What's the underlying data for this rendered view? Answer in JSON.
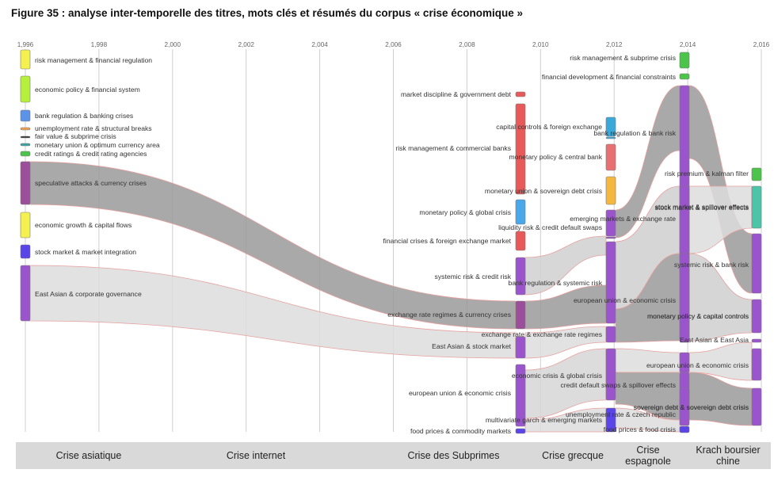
{
  "title": "Figure 35 : analyse inter-temporelle des titres, mots clés et résumés du corpus « crise économique »",
  "colors": {
    "grey_dark": "#9a9a9a",
    "grey_light": "#dddddd",
    "flow_edge": "#e8a0a0"
  },
  "years": [
    {
      "label": "1,996",
      "value": 1996
    },
    {
      "label": "1,998",
      "value": 1998
    },
    {
      "label": "2,000",
      "value": 2000
    },
    {
      "label": "2,002",
      "value": 2002
    },
    {
      "label": "2,004",
      "value": 2004
    },
    {
      "label": "2,006",
      "value": 2006
    },
    {
      "label": "2,008",
      "value": 2008
    },
    {
      "label": "2,010",
      "value": 2010
    },
    {
      "label": "2,012",
      "value": 2012
    },
    {
      "label": "2,014",
      "value": 2014
    },
    {
      "label": "2,016",
      "value": 2016
    }
  ],
  "clusters": [
    {
      "id": "c96_1",
      "year": 1996,
      "label": "risk management & financial regulation",
      "color": "#f4f050"
    },
    {
      "id": "c96_2",
      "year": 1996,
      "label": "economic policy & financial system",
      "color": "#b6f03c"
    },
    {
      "id": "c96_3",
      "year": 1996,
      "label": "bank regulation & banking crises",
      "color": "#5b93e8"
    },
    {
      "id": "c96_4",
      "year": 1996,
      "label": "unemployment rate & structural breaks",
      "color": "#f0a050"
    },
    {
      "id": "c96_5",
      "year": 1996,
      "label": "fair value & subprime crisis",
      "color": "#333333"
    },
    {
      "id": "c96_6",
      "year": 1996,
      "label": "monetary union & optimum currency area",
      "color": "#3aa3a0"
    },
    {
      "id": "c96_7",
      "year": 1996,
      "label": "credit ratings & credit rating agencies",
      "color": "#4cc44c"
    },
    {
      "id": "c96_8",
      "year": 1996,
      "label": "speculative attacks & currency crises",
      "color": "#9b4f9b"
    },
    {
      "id": "c96_9",
      "year": 1996,
      "label": "economic growth & capital flows",
      "color": "#f4f050"
    },
    {
      "id": "c96_10",
      "year": 1996,
      "label": "stock market & market integration",
      "color": "#5a45e8"
    },
    {
      "id": "c96_11",
      "year": 1996,
      "label": "East Asian & corporate governance",
      "color": "#9b55cc"
    },
    {
      "id": "c09_1",
      "year": 2009,
      "label": "market discipline & government debt",
      "color": "#e85a5a"
    },
    {
      "id": "c09_2",
      "year": 2009,
      "label": "risk management & commercial banks",
      "color": "#e85a5a"
    },
    {
      "id": "c09_3",
      "year": 2009,
      "label": "monetary policy & global crisis",
      "color": "#4aa8ea"
    },
    {
      "id": "c09_4",
      "year": 2009,
      "label": "financial crises & foreign exchange market",
      "color": "#e85a5a"
    },
    {
      "id": "c09_5",
      "year": 2009,
      "label": "systemic risk & credit risk",
      "color": "#9b55cc"
    },
    {
      "id": "c09_6",
      "year": 2009,
      "label": "exchange rate regimes & currency crises",
      "color": "#9b4f9b"
    },
    {
      "id": "c09_7",
      "year": 2009,
      "label": "East Asian & stock market",
      "color": "#9b55cc"
    },
    {
      "id": "c09_8",
      "year": 2009,
      "label": "european union & economic crisis",
      "color": "#9b55cc"
    },
    {
      "id": "c09_9",
      "year": 2009,
      "label": "food prices & commodity markets",
      "color": "#5a45e8"
    },
    {
      "id": "c12_1",
      "year": 2012,
      "label": "capital controls & foreign exchange",
      "color": "#3aa8d8"
    },
    {
      "id": "c12_2",
      "year": 2012,
      "label": "bank regulation & bank risk",
      "color": "#3aa8d8"
    },
    {
      "id": "c12_3",
      "year": 2012,
      "label": "monetary policy & central bank",
      "color": "#e87070"
    },
    {
      "id": "c12_4",
      "year": 2012,
      "label": "monetary union & sovereign debt crisis",
      "color": "#f4b840"
    },
    {
      "id": "c12_5",
      "year": 2012,
      "label": "emerging markets & exchange rate",
      "color": "#9b55cc"
    },
    {
      "id": "c12_6",
      "year": 2012,
      "label": "liquidity risk & credit default swaps",
      "color": "#9b55cc"
    },
    {
      "id": "c12_7",
      "year": 2012,
      "label": "bank regulation & systemic risk",
      "color": "#9b55cc"
    },
    {
      "id": "c12_8",
      "year": 2012,
      "label": "exchange rate & exchange rate regimes",
      "color": "#9b55cc"
    },
    {
      "id": "c12_9",
      "year": 2012,
      "label": "economic crisis & global crisis",
      "color": "#9b55cc"
    },
    {
      "id": "c12_10",
      "year": 2012,
      "label": "multivariate garch & emerging markets",
      "color": "#5a45e8"
    },
    {
      "id": "c14_1",
      "year": 2014,
      "label": "risk management & subprime crisis",
      "color": "#4cc44c"
    },
    {
      "id": "c14_2",
      "year": 2014,
      "label": "financial development & financial constraints",
      "color": "#4cc44c"
    },
    {
      "id": "c14_3",
      "year": 2014,
      "label": "european union & economic crisis",
      "color": "#9b55cc"
    },
    {
      "id": "c14_4",
      "year": 2014,
      "label": "credit default swaps & spillover effects",
      "color": "#9b55cc"
    },
    {
      "id": "c14_5",
      "year": 2014,
      "label": "unemployment rate & czech republic",
      "color": "#9b55cc"
    },
    {
      "id": "c14_6",
      "year": 2014,
      "label": "food prices & food crisis",
      "color": "#5a45e8"
    },
    {
      "id": "c14_7",
      "year": 2014,
      "label": "stock market & spillover effects",
      "color": "#9b55cc"
    },
    {
      "id": "c14_8",
      "year": 2014,
      "label": "monetary policy & capital controls",
      "color": "#9b55cc"
    },
    {
      "id": "c14_9",
      "year": 2014,
      "label": "sovereign debt & sovereign debt crisis",
      "color": "#9b55cc"
    },
    {
      "id": "c16_1",
      "year": 2016,
      "label": "risk premium & kalman filter",
      "color": "#4cc44c"
    },
    {
      "id": "c16_2",
      "year": 2016,
      "label": "stock market & spillover effects",
      "color": "#4cc4a8"
    },
    {
      "id": "c16_3",
      "year": 2016,
      "label": "systemic risk & bank risk",
      "color": "#9b55cc"
    },
    {
      "id": "c16_4",
      "year": 2016,
      "label": "monetary policy & capital controls",
      "color": "#9b55cc"
    },
    {
      "id": "c16_5",
      "year": 2016,
      "label": "East Asian & East Asia",
      "color": "#9b55cc"
    },
    {
      "id": "c16_6",
      "year": 2016,
      "label": "european union & economic crisis",
      "color": "#9b55cc"
    },
    {
      "id": "c16_7",
      "year": 2016,
      "label": "sovereign debt & sovereign debt crisis",
      "color": "#9b55cc"
    }
  ],
  "periods": [
    {
      "label": "Crise asiatique"
    },
    {
      "label": "Crise internet"
    },
    {
      "label": "Crise des Subprimes"
    },
    {
      "label": "Crise grecque"
    },
    {
      "label": "Crise espagnole"
    },
    {
      "label": "Krach boursier chine"
    }
  ]
}
